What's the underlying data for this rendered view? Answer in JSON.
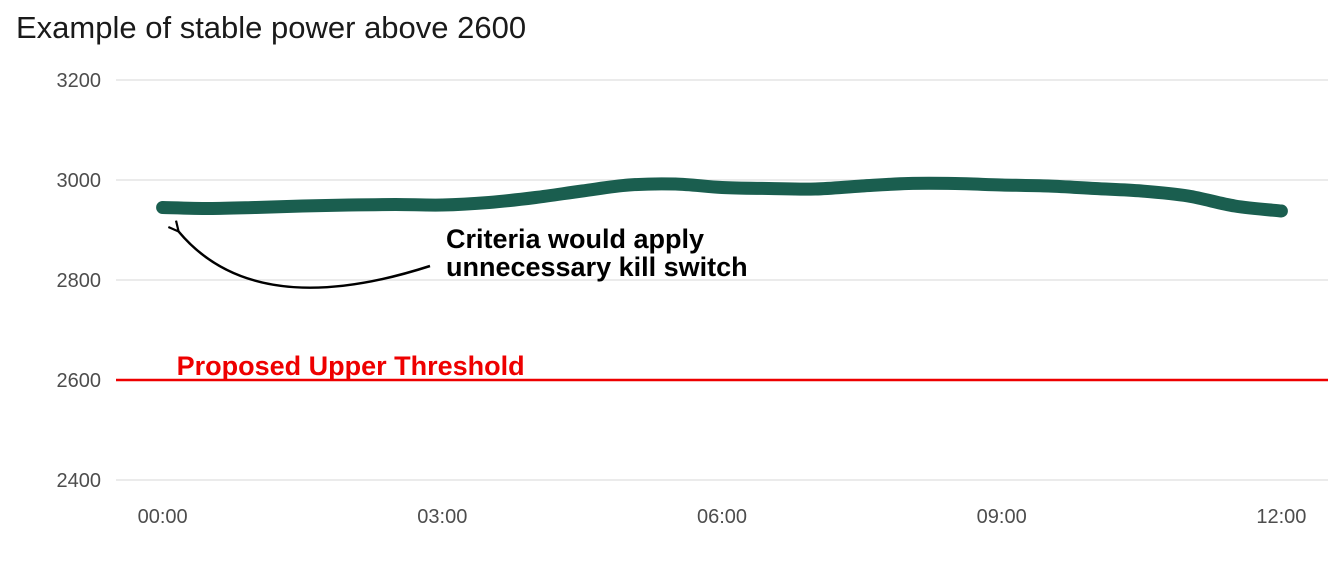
{
  "chart_data": {
    "type": "line",
    "title": "Example of stable power above 2600",
    "xlabel": "",
    "ylabel": "",
    "x_ticks": [
      "00:00",
      "03:00",
      "06:00",
      "09:00",
      "12:00"
    ],
    "y_ticks": [
      "2400",
      "2600",
      "2800",
      "3000",
      "3200"
    ],
    "xlim_hours": [
      -0.5,
      12.5
    ],
    "ylim": [
      2380,
      3240
    ],
    "grid": "horizontal",
    "series": [
      {
        "x_hours": [
          0,
          0.5,
          1.0,
          1.5,
          2.0,
          2.5,
          3.0,
          3.5,
          4.0,
          4.5,
          5.0,
          5.5,
          6.0,
          6.5,
          7.0,
          7.5,
          8.0,
          8.5,
          9.0,
          9.5,
          10.0,
          10.5,
          11.0,
          11.5,
          12.0
        ],
        "values": [
          2945,
          2943,
          2945,
          2948,
          2950,
          2951,
          2950,
          2955,
          2965,
          2978,
          2990,
          2992,
          2985,
          2983,
          2982,
          2988,
          2993,
          2993,
          2990,
          2988,
          2983,
          2978,
          2968,
          2948,
          2938
        ],
        "color": "#1a5e4f"
      }
    ],
    "threshold": {
      "value": 2600,
      "label": "Proposed Upper Threshold",
      "color": "#ee0000"
    },
    "annotation": {
      "lines": [
        "Criteria would apply",
        "unnecessary kill switch"
      ],
      "arrow_points_to": {
        "x_hours": 0.15,
        "y": 2905
      }
    }
  }
}
